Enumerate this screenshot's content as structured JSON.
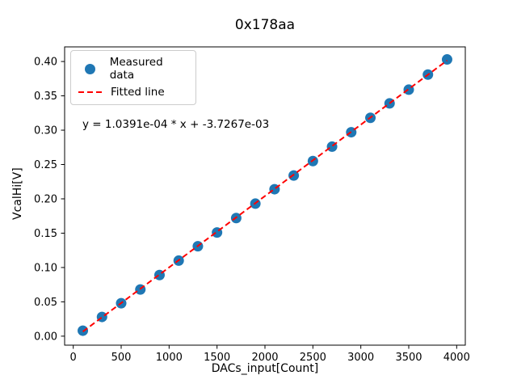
{
  "figure": {
    "background": "#ffffff"
  },
  "chart_data": {
    "type": "scatter",
    "title": "0x178aa",
    "xlabel": "DACs_input[Count]",
    "ylabel": "VcalHi[V]",
    "annotation": "y = 1.0391e-04 * x + -3.7267e-03",
    "xlim": [
      -90,
      4090
    ],
    "ylim": [
      -0.0131,
      0.4213
    ],
    "x_ticks": [
      0,
      500,
      1000,
      1500,
      2000,
      2500,
      3000,
      3500,
      4000
    ],
    "y_ticks": [
      0.0,
      0.05,
      0.1,
      0.15,
      0.2,
      0.25,
      0.3,
      0.35,
      0.4
    ],
    "grid": false,
    "legend_position": "upper left",
    "series": [
      {
        "name": "Measured data",
        "type": "scatter",
        "color": "#1f77b4",
        "x": [
          100,
          300,
          500,
          700,
          900,
          1100,
          1300,
          1500,
          1700,
          1900,
          2100,
          2300,
          2500,
          2700,
          2900,
          3100,
          3300,
          3500,
          3700,
          3900
        ],
        "y": [
          0.008,
          0.028,
          0.048,
          0.068,
          0.089,
          0.11,
          0.131,
          0.151,
          0.172,
          0.193,
          0.214,
          0.234,
          0.255,
          0.276,
          0.297,
          0.318,
          0.339,
          0.359,
          0.381,
          0.403
        ]
      },
      {
        "name": "Fitted line",
        "type": "line",
        "style": "dashed",
        "color": "#ff0000",
        "slope": 0.00010391,
        "intercept": -0.0037267,
        "x_range": [
          100,
          3900
        ]
      }
    ],
    "colors": {
      "marker": "#1f77b4",
      "fit_line": "#ff0000",
      "axes": "#000000",
      "legend_border": "#cccccc"
    }
  }
}
